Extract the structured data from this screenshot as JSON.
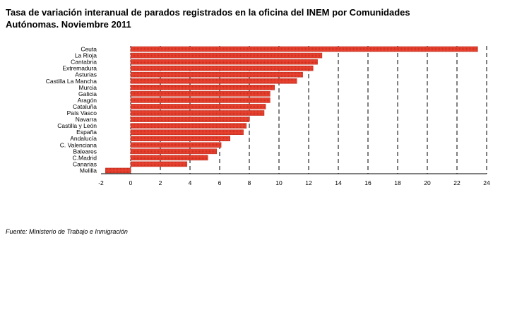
{
  "title": "Tasa de variación interanual de parados registrados en la oficina del INEM por Comunidades Autónomas. Noviembre 2011",
  "source": "Fuente: Ministerio de Trabajo e Inmigración",
  "colors": {
    "bar": "#e8402f",
    "bar_edge": "#b82a1c",
    "grid": "#000000"
  },
  "chart_data": {
    "type": "bar",
    "orientation": "horizontal",
    "categories": [
      "Ceuta",
      "La Rioja",
      "Cantabria",
      "Extremadura",
      "Asturias",
      "Castilla La Mancha",
      "Murcia",
      "Galicia",
      "Aragón",
      "Cataluña",
      "País Vasco",
      "Navarra",
      "Castilla y León",
      "España",
      "Andalucía",
      "C. Valenciana",
      "Baleares",
      "C.Madrid",
      "Canarias",
      "Melilla"
    ],
    "values": [
      23.4,
      12.9,
      12.6,
      12.3,
      11.6,
      11.2,
      9.7,
      9.4,
      9.4,
      9.1,
      9.0,
      8.0,
      7.8,
      7.6,
      6.7,
      6.1,
      5.8,
      5.2,
      3.8,
      -1.7
    ],
    "xlim": [
      -2,
      24
    ],
    "xticks": [
      -2,
      0,
      2,
      4,
      6,
      8,
      10,
      12,
      14,
      16,
      18,
      20,
      22,
      24
    ],
    "grid": "vertical dashed",
    "legend": "none"
  }
}
